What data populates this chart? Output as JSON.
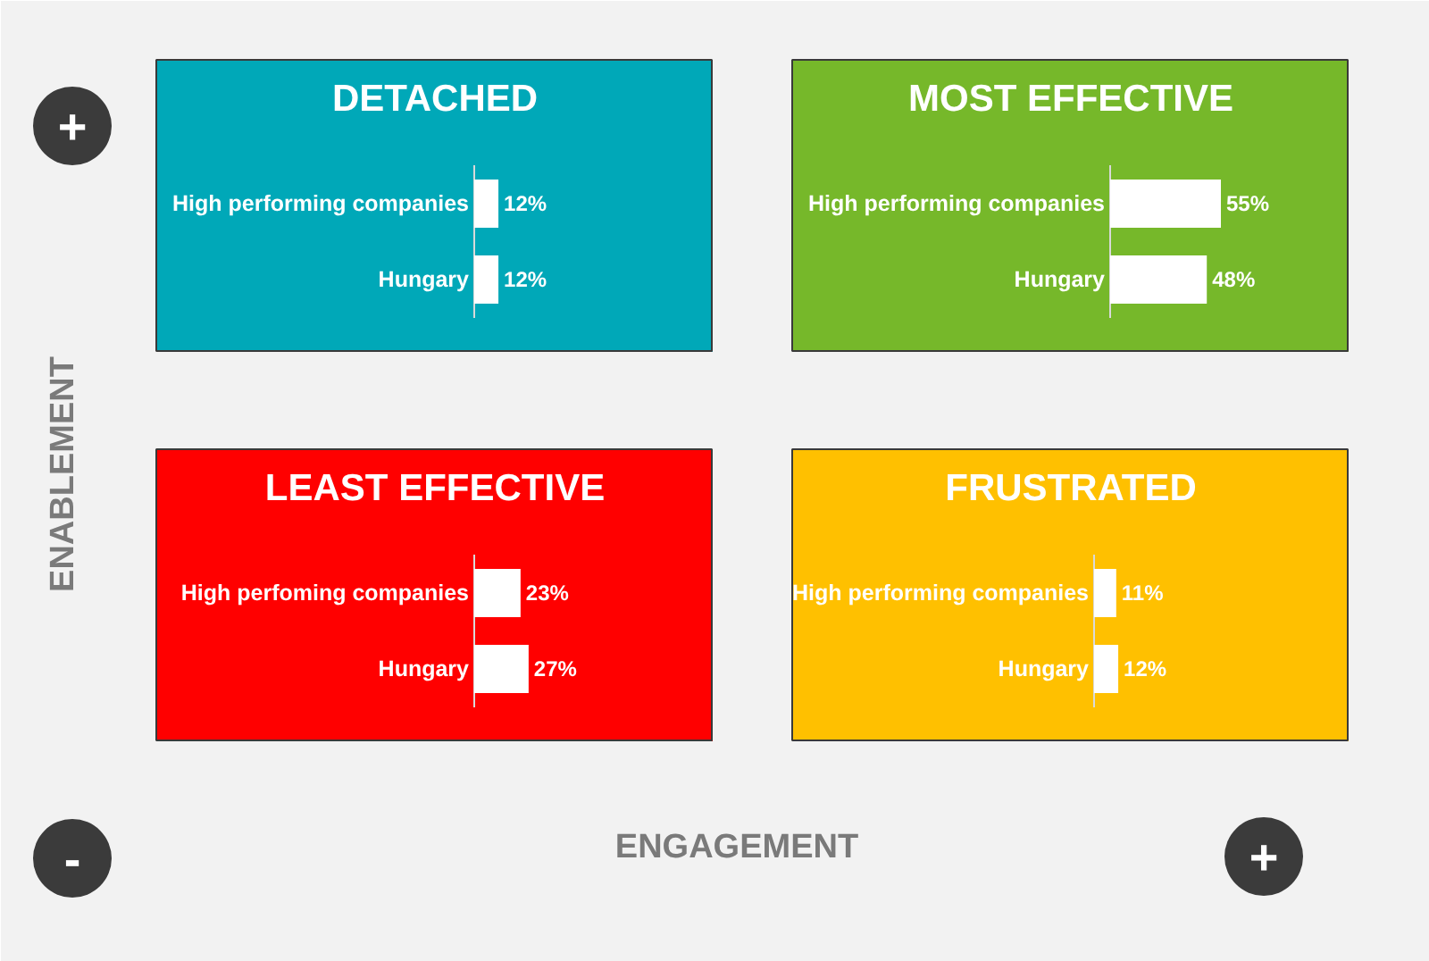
{
  "chart_data": [
    {
      "type": "bar",
      "orientation": "horizontal",
      "title": "DETACHED",
      "categories": [
        "High performing companies",
        "Hungary"
      ],
      "values": [
        12,
        12
      ],
      "value_labels": [
        "12%",
        "12%"
      ],
      "color": "#ffffff"
    },
    {
      "type": "bar",
      "orientation": "horizontal",
      "title": "MOST EFFECTIVE",
      "categories": [
        "High performing companies",
        "Hungary"
      ],
      "values": [
        55,
        48
      ],
      "value_labels": [
        "55%",
        "48%"
      ],
      "color": "#ffffff"
    },
    {
      "type": "bar",
      "orientation": "horizontal",
      "title": "LEAST EFFECTIVE",
      "categories": [
        "High perfoming companies",
        "Hungary"
      ],
      "values": [
        23,
        27
      ],
      "value_labels": [
        "23%",
        "27%"
      ],
      "color": "#ffffff"
    },
    {
      "type": "bar",
      "orientation": "horizontal",
      "title": "FRUSTRATED",
      "categories": [
        "High performing companies",
        "Hungary"
      ],
      "values": [
        11,
        12
      ],
      "value_labels": [
        "11%",
        "12%"
      ],
      "color": "#ffffff"
    },
    {
      "type": "other",
      "xlabel": "ENGAGEMENT",
      "ylabel": "ENABLEMENT",
      "annotations": [
        "+",
        "-",
        "+"
      ]
    }
  ]
}
